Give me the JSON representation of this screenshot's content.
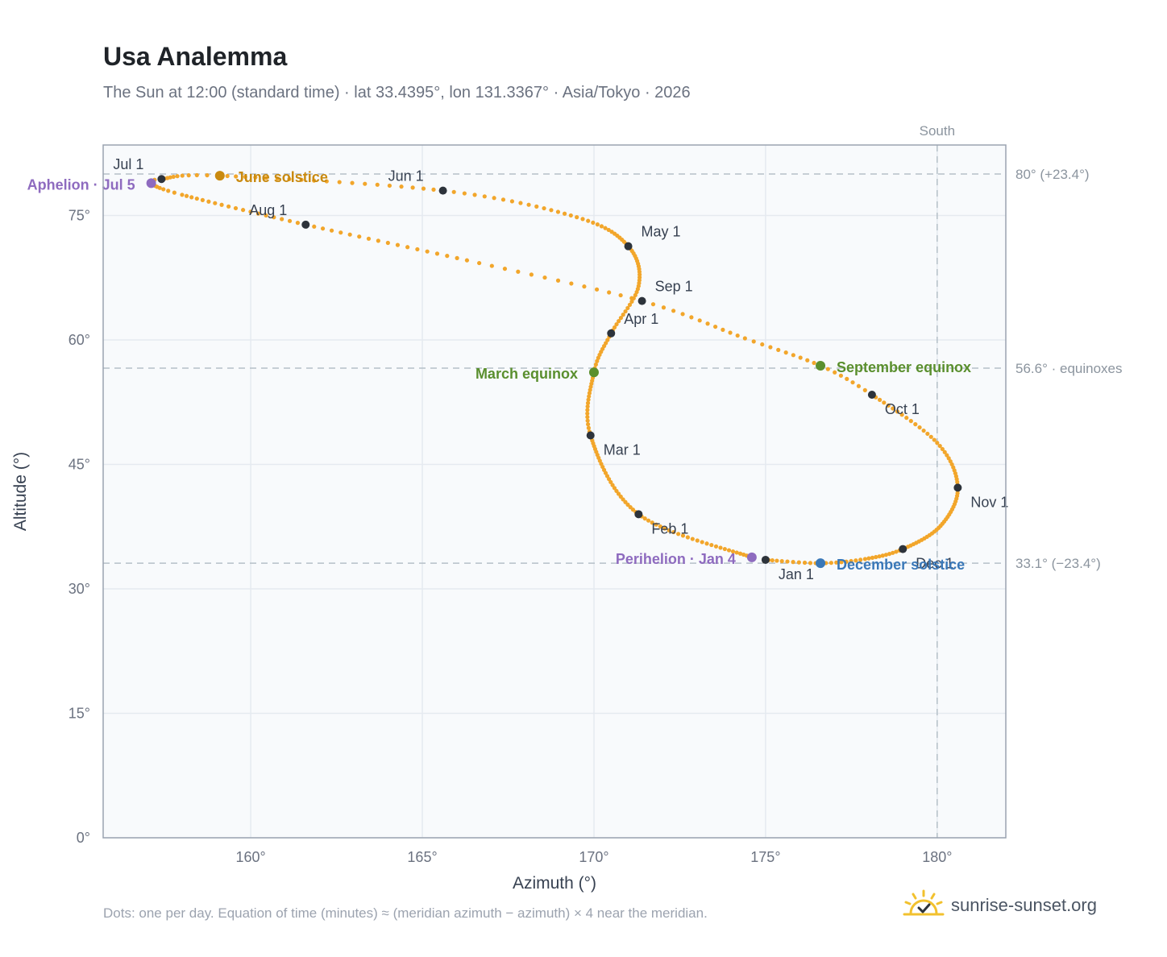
{
  "header": {
    "title": "Usa Analemma",
    "subtitle": "The Sun at 12:00 (standard time) · lat 33.4395°, lon 131.3367° · Asia/Tokyo · 2026"
  },
  "footer": {
    "note": "Dots: one per day. Equation of time (minutes) ≈ (meridian azimuth − azimuth) × 4 near the meridian.",
    "brand": "sunrise-sunset.org"
  },
  "colors": {
    "path": "#f2a62b",
    "month_marker": "#2d333b",
    "june_solstice": "#c98a10",
    "december_solstice": "#3a78b8",
    "equinox": "#5a8f2e",
    "apsis": "#8e6bbf",
    "plot_bg": "#f8fafc",
    "grid": "#e5eaf0",
    "reference_line": "#b5c0c8"
  },
  "chart_data": {
    "type": "scatter",
    "title": "Usa Analemma",
    "xlabel": "Azimuth (°)",
    "ylabel": "Altitude (°)",
    "xlim": [
      155.7,
      182.0
    ],
    "ylim": [
      0,
      83.5
    ],
    "x_ticks": [
      160,
      165,
      170,
      175,
      180
    ],
    "x_tick_labels": [
      "160°",
      "165°",
      "170°",
      "175°",
      "180°"
    ],
    "y_ticks": [
      0,
      15,
      30,
      45,
      60,
      75
    ],
    "y_tick_labels": [
      "0°",
      "15°",
      "30°",
      "45°",
      "60°",
      "75°"
    ],
    "grid": true,
    "meridian": {
      "azimuth": 180,
      "label": "South"
    },
    "reference_lines": [
      {
        "altitude": 80.0,
        "label": "80° (+23.4°)"
      },
      {
        "altitude": 56.6,
        "label": "56.6° · equinoxes"
      },
      {
        "altitude": 33.1,
        "label": "33.1° (−23.4°)"
      }
    ],
    "path_anchors": [
      {
        "day": 1,
        "az": 175.0,
        "alt": 33.5
      },
      {
        "day": 4,
        "az": 174.6,
        "alt": 33.8
      },
      {
        "day": 32,
        "az": 171.3,
        "alt": 39.0
      },
      {
        "day": 60,
        "az": 169.9,
        "alt": 48.5
      },
      {
        "day": 79,
        "az": 170.0,
        "alt": 56.1
      },
      {
        "day": 91,
        "az": 170.5,
        "alt": 60.8
      },
      {
        "day": 106,
        "az": 171.3,
        "alt": 66.5
      },
      {
        "day": 121,
        "az": 171.0,
        "alt": 71.3
      },
      {
        "day": 136,
        "az": 169.5,
        "alt": 74.8
      },
      {
        "day": 152,
        "az": 165.6,
        "alt": 78.0
      },
      {
        "day": 172,
        "az": 159.1,
        "alt": 79.8
      },
      {
        "day": 182,
        "az": 157.4,
        "alt": 79.4
      },
      {
        "day": 186,
        "az": 157.1,
        "alt": 78.9
      },
      {
        "day": 195,
        "az": 158.0,
        "alt": 77.5
      },
      {
        "day": 213,
        "az": 161.6,
        "alt": 73.9
      },
      {
        "day": 230,
        "az": 166.3,
        "alt": 69.6
      },
      {
        "day": 244,
        "az": 171.4,
        "alt": 64.7
      },
      {
        "day": 256,
        "az": 174.4,
        "alt": 60.2
      },
      {
        "day": 266,
        "az": 176.6,
        "alt": 56.9
      },
      {
        "day": 274,
        "az": 178.1,
        "alt": 53.4
      },
      {
        "day": 290,
        "az": 180.0,
        "alt": 47.6
      },
      {
        "day": 305,
        "az": 180.6,
        "alt": 42.2
      },
      {
        "day": 320,
        "az": 180.1,
        "alt": 37.6
      },
      {
        "day": 335,
        "az": 179.0,
        "alt": 34.8
      },
      {
        "day": 346,
        "az": 177.9,
        "alt": 33.6
      },
      {
        "day": 355,
        "az": 176.6,
        "alt": 33.1
      },
      {
        "day": 366,
        "az": 175.0,
        "alt": 33.5
      }
    ],
    "month_markers": [
      {
        "label": "Jan 1",
        "az": 175.0,
        "alt": 33.5
      },
      {
        "label": "Feb 1",
        "az": 171.3,
        "alt": 39.0
      },
      {
        "label": "Mar 1",
        "az": 169.9,
        "alt": 48.5
      },
      {
        "label": "Apr 1",
        "az": 170.5,
        "alt": 60.8
      },
      {
        "label": "May 1",
        "az": 171.0,
        "alt": 71.3
      },
      {
        "label": "Jun 1",
        "az": 165.6,
        "alt": 78.0
      },
      {
        "label": "Jul 1",
        "az": 157.4,
        "alt": 79.4
      },
      {
        "label": "Aug 1",
        "az": 161.6,
        "alt": 73.9
      },
      {
        "label": "Sep 1",
        "az": 171.4,
        "alt": 64.7
      },
      {
        "label": "Oct 1",
        "az": 178.1,
        "alt": 53.4
      },
      {
        "label": "Nov 1",
        "az": 180.6,
        "alt": 42.2
      },
      {
        "label": "Dec 1",
        "az": 179.0,
        "alt": 34.8
      }
    ],
    "events": [
      {
        "label": "June solstice",
        "az": 159.1,
        "alt": 79.8,
        "color": "#c98a10"
      },
      {
        "label": "December solstice",
        "az": 176.6,
        "alt": 33.1,
        "color": "#3a78b8"
      },
      {
        "label": "March equinox",
        "az": 170.0,
        "alt": 56.1,
        "color": "#5a8f2e"
      },
      {
        "label": "September equinox",
        "az": 176.6,
        "alt": 56.9,
        "color": "#5a8f2e"
      },
      {
        "label": "Aphelion · Jul 5",
        "az": 157.1,
        "alt": 78.9,
        "color": "#8e6bbf"
      },
      {
        "label": "Perihelion · Jan 4",
        "az": 174.6,
        "alt": 33.8,
        "color": "#8e6bbf"
      }
    ]
  }
}
